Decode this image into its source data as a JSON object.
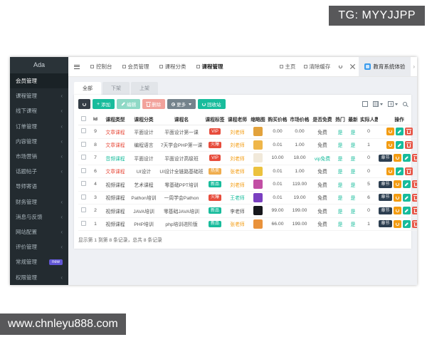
{
  "overlays": {
    "telegram": "TG: MYYJJPP",
    "website": "www.chnleyu888.com"
  },
  "sidebar": {
    "brand": "Ada",
    "items": [
      {
        "label": "会员管理",
        "active": true,
        "arrow": false
      },
      {
        "label": "课程管理",
        "active": false,
        "arrow": true
      },
      {
        "label": "线下课程",
        "active": false,
        "arrow": true
      },
      {
        "label": "订单管理",
        "active": false,
        "arrow": true
      },
      {
        "label": "内容管理",
        "active": false,
        "arrow": true
      },
      {
        "label": "市场营销",
        "active": false,
        "arrow": true
      },
      {
        "label": "话题帖子",
        "active": false,
        "arrow": true
      },
      {
        "label": "导师寄语",
        "active": false,
        "arrow": false
      },
      {
        "label": "财务管理",
        "active": false,
        "arrow": true
      },
      {
        "label": "消息与反馈",
        "active": false,
        "arrow": true
      },
      {
        "label": "网站配置",
        "active": false,
        "arrow": true
      },
      {
        "label": "评价管理",
        "active": false,
        "arrow": true
      },
      {
        "label": "常规管理",
        "active": false,
        "arrow": false,
        "badge": "new"
      },
      {
        "label": "权限管理",
        "active": false,
        "arrow": true
      }
    ]
  },
  "topnav": {
    "tabs": [
      {
        "label": "控制台",
        "active": false
      },
      {
        "label": "会员管理",
        "active": false
      },
      {
        "label": "课程分类",
        "active": false
      },
      {
        "label": "课程管理",
        "active": true
      }
    ],
    "home": "主页",
    "clear_cache": "清除缓存",
    "workspace": "教育系统体验"
  },
  "filter_tabs": [
    {
      "label": "全部",
      "active": true
    },
    {
      "label": "下架",
      "active": false
    },
    {
      "label": "上架",
      "active": false
    }
  ],
  "toolbar": {
    "add": "添加",
    "edit": "编辑",
    "delete": "删除",
    "more": "更多",
    "recycle": "回收站"
  },
  "table": {
    "columns": [
      "Id",
      "课程类型",
      "课程分类",
      "课程名",
      "课程标签",
      "课程老师",
      "缩略图",
      "购买价格",
      "市场价格",
      "是否免费",
      "热门",
      "最新",
      "实际人数",
      "操作"
    ],
    "chapter_button": "章节",
    "rows": [
      {
        "id": "9",
        "type": "文章课程",
        "type_color": "red",
        "category": "平面设计",
        "name": "平面设计第一课",
        "tag": "VIP",
        "tag_color": "red",
        "teacher": "刘老师",
        "teacher_color": "orange",
        "thumb": "#e2a23c",
        "buy": "0.00",
        "market": "0.00",
        "free": "免费",
        "free_color": "dark",
        "hot": "是",
        "new": "是",
        "students": "0",
        "chapter": false
      },
      {
        "id": "8",
        "type": "文章课程",
        "type_color": "red",
        "category": "编程语言",
        "name": "7天学会PHP第一课",
        "tag": "火爆",
        "tag_color": "red",
        "teacher": "刘老师",
        "teacher_color": "orange",
        "thumb": "#efb64a",
        "buy": "0.01",
        "market": "1.00",
        "free": "免费",
        "free_color": "dark",
        "hot": "是",
        "new": "是",
        "students": "1",
        "chapter": false
      },
      {
        "id": "7",
        "type": "音频课程",
        "type_color": "green",
        "category": "平面设计",
        "name": "平面设计高级班",
        "tag": "VIP",
        "tag_color": "red",
        "teacher": "刘老师",
        "teacher_color": "orange",
        "thumb": "#f1e9da",
        "buy": "10.00",
        "market": "18.00",
        "free": "vip免费",
        "free_color": "green",
        "hot": "是",
        "new": "是",
        "students": "0",
        "chapter": true
      },
      {
        "id": "6",
        "type": "文章课程",
        "type_color": "red",
        "category": "UI设计",
        "name": "UI设计全链路基础班",
        "tag": "热卖",
        "tag_color": "yellow",
        "teacher": "张老师",
        "teacher_color": "orange",
        "thumb": "#ecc23e",
        "buy": "0.01",
        "market": "1.00",
        "free": "免费",
        "free_color": "dark",
        "hot": "是",
        "new": "是",
        "students": "0",
        "chapter": false
      },
      {
        "id": "4",
        "type": "视频课程",
        "type_color": "dark",
        "category": "艺术课程",
        "name": "零基础PPT培训",
        "tag": "新品",
        "tag_color": "green",
        "teacher": "刘老师",
        "teacher_color": "orange",
        "thumb": "#c24fa4",
        "buy": "0.01",
        "market": "119.00",
        "free": "免费",
        "free_color": "dark",
        "hot": "是",
        "new": "是",
        "students": "5",
        "chapter": true
      },
      {
        "id": "3",
        "type": "视频课程",
        "type_color": "dark",
        "category": "Pathon培训",
        "name": "一周学会Pathon",
        "tag": "火爆",
        "tag_color": "red",
        "teacher": "王老师",
        "teacher_color": "green",
        "thumb": "#7a3fc0",
        "buy": "0.01",
        "market": "19.00",
        "free": "免费",
        "free_color": "dark",
        "hot": "是",
        "new": "是",
        "students": "6",
        "chapter": true
      },
      {
        "id": "2",
        "type": "视频课程",
        "type_color": "dark",
        "category": "JAVA培训",
        "name": "零基础JAVA培训",
        "tag": "新品",
        "tag_color": "green",
        "teacher": "李老师",
        "teacher_color": "dark",
        "thumb": "#17181c",
        "buy": "99.00",
        "market": "199.00",
        "free": "免费",
        "free_color": "dark",
        "hot": "是",
        "new": "是",
        "students": "0",
        "chapter": true
      },
      {
        "id": "1",
        "type": "视频课程",
        "type_color": "dark",
        "category": "PHP培训",
        "name": "php培训进阶版",
        "tag": "新品",
        "tag_color": "green",
        "teacher": "张老师",
        "teacher_color": "orange",
        "thumb": "#e9923b",
        "buy": "66.00",
        "market": "199.00",
        "free": "免费",
        "free_color": "dark",
        "hot": "是",
        "new": "是",
        "students": "1",
        "chapter": true
      }
    ]
  },
  "pagination": "显示第 1 到第 8 条记录，总共 8 条记录",
  "colors": {
    "accent_green": "#18bc9c",
    "danger_red": "#e74c3c",
    "warning_orange": "#f39c12",
    "tag_yellow": "#f0ad4e",
    "badge_new": "#6257d6",
    "dark_button": "#2c3e50",
    "sidebar_bg": "#232b30",
    "watermark_bg": "#58585a",
    "workspace_icon_blue": "#3b9ced"
  }
}
